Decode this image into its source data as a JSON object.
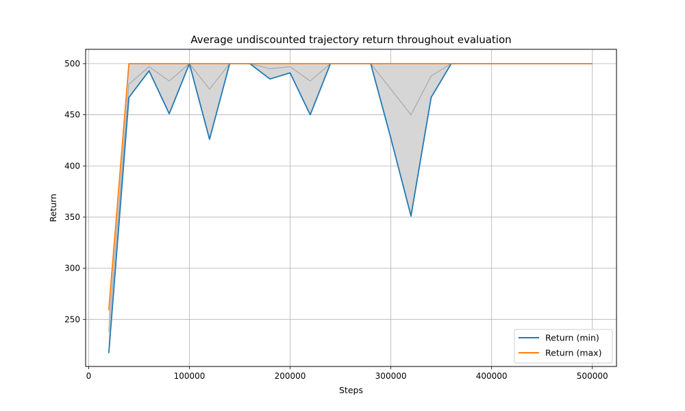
{
  "chart_data": {
    "type": "line",
    "title": "Average undiscounted trajectory return throughout evaluation",
    "xlabel": "Steps",
    "ylabel": "Return",
    "xlim": [
      -3000,
      524000
    ],
    "ylim": [
      204,
      514
    ],
    "x_ticks": [
      0,
      100000,
      200000,
      300000,
      400000,
      500000
    ],
    "y_ticks": [
      250,
      300,
      350,
      400,
      450,
      500
    ],
    "grid": true,
    "legend_position": "bottom-right",
    "x": [
      20000,
      40000,
      60000,
      80000,
      100000,
      120000,
      140000,
      160000,
      180000,
      200000,
      220000,
      240000,
      260000,
      280000,
      300000,
      320000,
      340000,
      360000,
      380000,
      400000,
      420000,
      440000,
      460000,
      480000,
      500000
    ],
    "series": [
      {
        "name": "Return (min)",
        "color": "#1f77b4",
        "values": [
          217,
          467,
          493,
          451,
          500,
          426,
          500,
          500,
          485,
          491,
          450,
          500,
          500,
          500,
          427,
          351,
          467,
          500,
          500,
          500,
          500,
          500,
          500,
          500,
          500
        ]
      },
      {
        "name": "Return (max)",
        "color": "#ff7f0e",
        "values": [
          259,
          500,
          500,
          500,
          500,
          500,
          500,
          500,
          500,
          500,
          500,
          500,
          500,
          500,
          500,
          500,
          500,
          500,
          500,
          500,
          500,
          500,
          500,
          500,
          500
        ]
      }
    ],
    "mean_values": [
      238,
      480,
      497,
      483,
      500,
      475,
      500,
      500,
      495,
      497,
      483,
      500,
      500,
      500,
      475,
      450,
      488,
      500,
      500,
      500,
      500,
      500,
      500,
      500,
      500
    ],
    "band_color": "#d6d6d6",
    "mean_line_color": "#a8a8a8"
  }
}
